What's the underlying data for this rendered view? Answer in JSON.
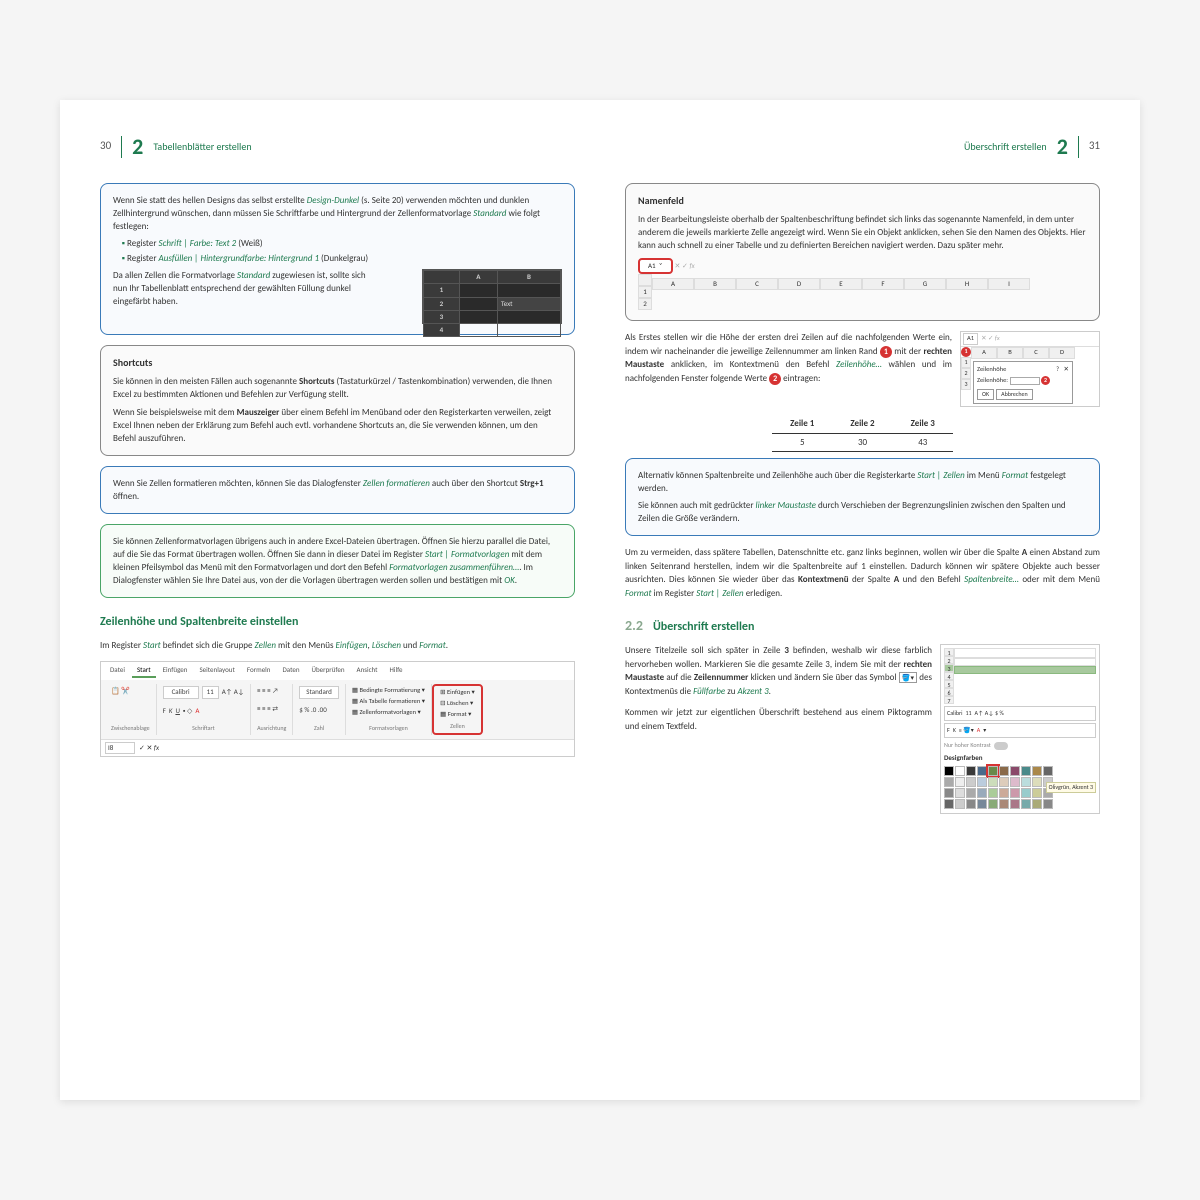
{
  "left": {
    "pageNum": "30",
    "chapNum": "2",
    "chapTitle": "Tabellenblätter erstellen",
    "box1": {
      "intro1": "Wenn Sie statt des hellen Designs das selbst erstellte ",
      "intro1em": "Design-Dunkel",
      "intro1b": " (s. Seite 20) verwenden möchten und dunklen Zellhintergrund wünschen, dann müssen Sie Schriftfarbe und Hintergrund der Zellenformatvorlage ",
      "intro1em2": "Standard",
      "intro1c": " wie folgt festlegen:",
      "bullet1a": "Register ",
      "bullet1b": "Schrift | Farbe: Text 2",
      "bullet1c": " (Weiß)",
      "bullet2a": "Register ",
      "bullet2b": "Ausfüllen | Hintergrundfarbe: Hintergrund 1",
      "bullet2c": " (Dunkelgrau)",
      "after1": "Da allen Zellen die Formatvorlage ",
      "after1em": "Standard",
      "after1b": " zugewiesen ist, sollte sich nun Ihr Tabellenblatt entsprechend der gewählten Füllung dunkel eingefärbt haben.",
      "gridTextCell": "Text"
    },
    "box2": {
      "title": "Shortcuts",
      "p1a": "Sie können in den meisten Fällen auch sogenannte ",
      "p1b": "Shortcuts",
      "p1c": " (Tastaturkürzel / Tastenkombination) verwenden, die Ihnen Excel zu bestimmten Aktionen und Befehlen zur Verfügung stellt.",
      "p2a": "Wenn Sie beispielsweise mit dem ",
      "p2b": "Mauszeiger",
      "p2c": " über einem Befehl im Menüband oder den Registerkarten verweilen, zeigt Excel Ihnen neben der Erklärung zum Befehl auch evtl. vorhandene Shortcuts an, die Sie verwenden können, um den Befehl auszuführen."
    },
    "box3": {
      "p1a": "Wenn Sie Zellen formatieren möchten, können Sie das Dialogfenster ",
      "p1b": "Zellen formatieren",
      "p1c": " auch über den Shortcut ",
      "p1d": "Strg+1",
      "p1e": " öffnen."
    },
    "box4": {
      "p1": "Sie können Zellenformatvorlagen übrigens auch in andere Excel-Dateien übertragen. Öffnen Sie hierzu parallel die Datei, auf die Sie das Format übertragen wollen. Öffnen Sie dann in dieser Datei im Register ",
      "p1b": "Start | Formatvorlagen",
      "p1c": " mit dem kleinen Pfeilsymbol das Menü mit den Formatvorlagen und dort den Befehl ",
      "p1d": "Formatvorlagen zusammenführen…",
      "p1e": ". Im Dialogfenster wählen Sie Ihre Datei aus, von der die Vorlagen übertragen werden sollen und bestätigen mit ",
      "p1f": "OK",
      "p1g": "."
    },
    "sec1": {
      "title": "Zeilenhöhe und Spaltenbreite einstellen",
      "p1a": "Im Register ",
      "p1b": "Start",
      "p1c": " befindet sich die Gruppe ",
      "p1d": "Zellen",
      "p1e": " mit den Menüs ",
      "p1f": "Einfügen",
      "p1g": ", ",
      "p1h": "Löschen",
      "p1i": " und ",
      "p1j": "Format",
      "p1k": "."
    },
    "ribbon": {
      "tabs": [
        "Datei",
        "Start",
        "Einfügen",
        "Seitenlayout",
        "Formeln",
        "Daten",
        "Überprüfen",
        "Ansicht",
        "Hilfe"
      ],
      "font": "Calibri",
      "size": "11",
      "groups": {
        "zwischen": "Zwischenablage",
        "schrift": "Schriftart",
        "ausricht": "Ausrichtung",
        "zahl": "Zahl",
        "format": "Formatvorlagen",
        "zellen": "Zellen"
      },
      "formatItems": [
        "Bedingte Formatierung ▾",
        "Als Tabelle formatieren ▾",
        "Zellenformatvorlagen ▾"
      ],
      "zellenItems": [
        "Einfügen ▾",
        "Löschen ▾",
        "Format ▾"
      ],
      "cellRef": "I8",
      "standard": "Standard"
    }
  },
  "right": {
    "chapTitle": "Überschrift erstellen",
    "chapNum": "2",
    "pageNum": "31",
    "box1": {
      "title": "Namenfeld",
      "p1": "In der Bearbeitungsleiste oberhalb der Spaltenbeschriftung befindet sich links das sogenannte Namenfeld, in dem unter anderem die jeweils markierte Zelle angezeigt wird. Wenn Sie ein Objekt anklicken, sehen Sie den Namen des Objekts. Hier kann auch schnell zu einer Tabelle und zu definierten Bereichen navigiert werden. Dazu später mehr.",
      "a1": "A1",
      "cols": [
        "A",
        "B",
        "C",
        "D",
        "E",
        "F",
        "G",
        "H",
        "I"
      ]
    },
    "para1": {
      "a": "Als Erstes stellen wir die Höhe der ersten drei Zeilen auf die nachfolgenden Werte ein, indem wir nacheinander die jeweilige Zeilennummer am linken Rand ",
      "b": " mit der ",
      "c": "rechten Maustaste",
      "d": " anklicken, im Kontextmenü den Befehl ",
      "e": "Zeilenhöhe…",
      "f": " wählen und im nachfolgenden Fenster folgende Werte ",
      "g": " eintragen:"
    },
    "dialog": {
      "cellRef": "A1",
      "cols": [
        "A",
        "B",
        "C",
        "D"
      ],
      "title": "Zeilenhöhe",
      "label": "Zeilenhöhe:",
      "ok": "OK",
      "cancel": "Abbrechen"
    },
    "zeileTable": {
      "h1": "Zeile 1",
      "h2": "Zeile 2",
      "h3": "Zeile 3",
      "v1": "5",
      "v2": "30",
      "v3": "43"
    },
    "box2": {
      "p1a": "Alternativ können Spaltenbreite und Zeilenhöhe auch über die Registerkarte ",
      "p1b": "Start | Zellen",
      "p1c": " im Menü ",
      "p1d": "Format",
      "p1e": " festgelegt werden.",
      "p2a": "Sie können auch mit gedrückter ",
      "p2b": "linker Maustaste",
      "p2c": " durch Verschieben der Begrenzungslinien zwischen den Spalten und Zeilen die Größe verändern."
    },
    "para2": {
      "a": "Um zu vermeiden, dass spätere Tabellen, Datenschnitte etc. ganz links beginnen, wollen wir über die Spalte ",
      "b": "A",
      "c": " einen Abstand zum linken Seitenrand herstellen, indem wir die Spaltenbreite auf 1 einstellen. Dadurch können wir spätere Objekte auch besser ausrichten. Dies können Sie wieder über das ",
      "d": "Kontextmenü",
      "e": " der Spalte ",
      "f": "A",
      "g": " und den Befehl ",
      "h": "Spaltenbreite…",
      "i": " oder mit dem Menü ",
      "j": "Format",
      "k": " im Register ",
      "l": "Start | Zellen",
      "m": " erledigen."
    },
    "sec2": {
      "num": "2.2",
      "title": "Überschrift erstellen",
      "p1a": "Unsere Titelzeile soll sich später in Zeile ",
      "p1b": "3",
      "p1c": " befinden, weshalb wir diese farblich hervorheben wollen. Markieren Sie die gesamte Zeile 3, indem Sie mit der ",
      "p1d": "rechten Maustaste ",
      "p1e": "auf die ",
      "p1f": "Zeilennummer",
      "p1g": " klicken und ändern Sie über das Symbol ",
      "p1h": " des Kontextmenüs die ",
      "p1i": "Füllfarbe",
      "p1j": " zu ",
      "p1k": "Akzent 3",
      "p1l": ".",
      "p2": "Kommen wir jetzt zur eigentlichen Überschrift bestehend aus einem Piktogramm und einem Textfeld."
    },
    "designColors": {
      "font": "Calibri",
      "size": "11",
      "toggleLabel": "Nur hoher Kontrast",
      "title": "Designfarben",
      "tooltip": "Olivgrün, Akzent 3",
      "row1": [
        "#000000",
        "#ffffff",
        "#3a3a3a",
        "#4a6a8a",
        "#6a8a4a",
        "#8a6a4a",
        "#8a4a6a",
        "#4a8a8a",
        "#aa884a",
        "#666666"
      ],
      "row2": [
        "#aaaaaa",
        "#eeeeee",
        "#cccccc",
        "#bcd",
        "#cdb",
        "#dcb",
        "#dbc",
        "#bdd",
        "#ddb",
        "#ccc"
      ],
      "row3": [
        "#888888",
        "#dddddd",
        "#aaaaaa",
        "#9ab",
        "#ac9",
        "#ca9",
        "#c9a",
        "#9cc",
        "#cc9",
        "#aaa"
      ],
      "row4": [
        "#666666",
        "#cccccc",
        "#888888",
        "#789",
        "#8a7",
        "#a87",
        "#a78",
        "#7aa",
        "#aa7",
        "#888"
      ]
    }
  }
}
